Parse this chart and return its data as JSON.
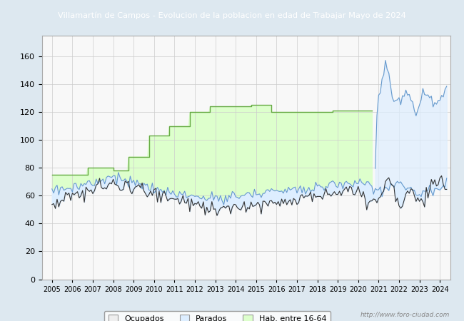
{
  "title": "Villamartín de Campos - Evolucion de la poblacion en edad de Trabajar Mayo de 2024",
  "title_bg": "#4472c4",
  "title_color": "white",
  "watermark": "http://www.foro-ciudad.com",
  "ylim": [
    0,
    175
  ],
  "yticks": [
    0,
    20,
    40,
    60,
    80,
    100,
    120,
    140,
    160
  ],
  "xtick_labels": [
    "2005",
    "2006",
    "2007",
    "2008",
    "2009",
    "2010",
    "2011",
    "2012",
    "2013",
    "2014",
    "2015",
    "2016",
    "2017",
    "2018",
    "2019",
    "2020",
    "2021",
    "2022",
    "2023",
    "2024"
  ],
  "grid_color": "#cccccc",
  "ocupados_color": "#333333",
  "parados_color": "#6699cc",
  "hab_line_color": "#66aa44",
  "hab_fill_color": "#ddffcc",
  "parados_fill_color": "#ddeeff",
  "plot_bg": "#f8f8f8",
  "fig_bg": "#dde8f0"
}
